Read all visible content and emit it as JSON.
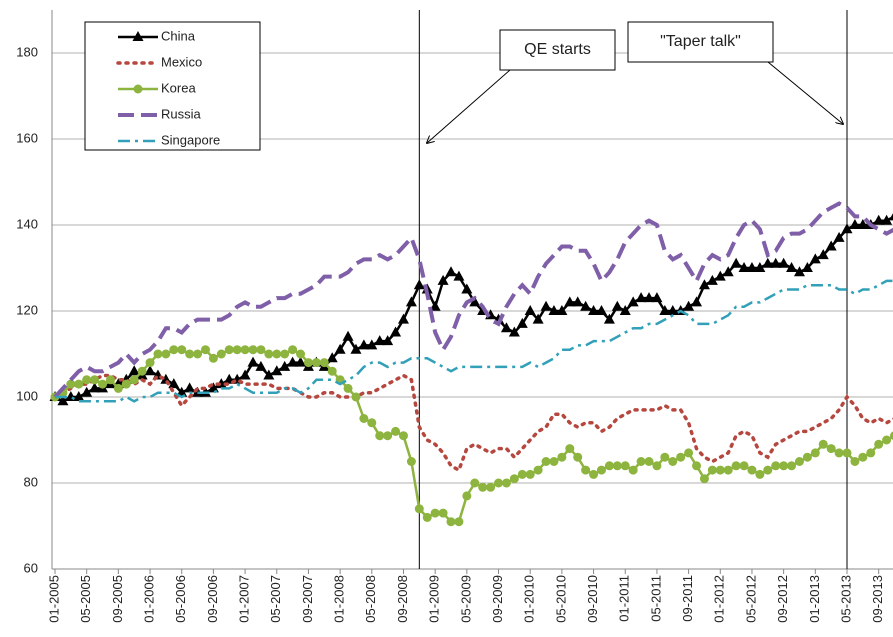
{
  "chart_data": {
    "type": "line",
    "categories": [
      "01-2005",
      null,
      null,
      null,
      "05-2005",
      null,
      null,
      null,
      "09-2005",
      null,
      null,
      null,
      "01-2006",
      null,
      null,
      null,
      "05-2006",
      null,
      null,
      null,
      "09-2006",
      null,
      null,
      null,
      "01-2007",
      null,
      null,
      null,
      "05-2007",
      null,
      null,
      null,
      "09-2007",
      null,
      null,
      null,
      "01-2008",
      null,
      null,
      null,
      "05-2008",
      null,
      null,
      null,
      "09-2008",
      null,
      null,
      null,
      "01-2009",
      null,
      null,
      null,
      "05-2009",
      null,
      null,
      null,
      "09-2009",
      null,
      null,
      null,
      "01-2010",
      null,
      null,
      null,
      "05-2010",
      null,
      null,
      null,
      "09-2010",
      null,
      null,
      null,
      "01-2011",
      null,
      null,
      null,
      "05-2011",
      null,
      null,
      null,
      "09-2011",
      null,
      null,
      null,
      "01-2012",
      null,
      null,
      null,
      "05-2012",
      null,
      null,
      null,
      "09-2012",
      null,
      null,
      null,
      "01-2013",
      null,
      null,
      null,
      "05-2013",
      null,
      null,
      null,
      "09-2013",
      null,
      null
    ],
    "series": [
      {
        "name": "China",
        "color": "#000000",
        "dash": "solid",
        "marker": "triangle",
        "values": [
          100,
          99,
          100,
          100,
          101,
          102,
          102,
          103,
          103,
          104,
          106,
          105,
          106,
          105,
          104,
          103,
          101,
          102,
          101,
          101,
          102,
          103,
          104,
          104,
          105,
          108,
          107,
          105,
          106,
          107,
          108,
          108,
          107,
          108,
          107,
          109,
          111,
          114,
          111,
          112,
          112,
          113,
          113,
          115,
          118,
          122,
          126,
          125,
          121,
          127,
          129,
          128,
          125,
          122,
          120,
          119,
          118,
          116,
          115,
          117,
          120,
          118,
          121,
          120,
          120,
          122,
          122,
          121,
          120,
          120,
          118,
          121,
          120,
          122,
          123,
          123,
          123,
          120,
          120,
          120,
          121,
          122,
          126,
          127,
          128,
          129,
          131,
          130,
          130,
          130,
          131,
          131,
          131,
          130,
          129,
          130,
          132,
          133,
          135,
          137,
          139,
          140,
          140,
          140,
          141,
          141,
          142
        ]
      },
      {
        "name": "Mexico",
        "color": "#b5473f",
        "dash": "dotted",
        "marker": "none",
        "values": [
          100,
          101,
          102,
          103,
          103,
          104,
          105,
          105,
          104,
          104,
          103,
          104,
          103,
          105,
          104,
          101,
          98,
          100,
          102,
          102,
          103,
          103,
          103,
          104,
          103,
          103,
          103,
          103,
          102,
          102,
          102,
          101,
          100,
          100,
          101,
          101,
          100,
          100,
          100,
          101,
          101,
          102,
          103,
          104,
          105,
          104,
          93,
          90,
          89,
          87,
          84,
          83,
          88,
          89,
          88,
          87,
          88,
          88,
          86,
          88,
          90,
          92,
          93,
          96,
          96,
          94,
          93,
          94,
          94,
          92,
          93,
          95,
          96,
          97,
          97,
          97,
          97,
          98,
          97,
          97,
          94,
          88,
          86,
          85,
          86,
          87,
          91,
          92,
          91,
          87,
          86,
          89,
          90,
          91,
          92,
          92,
          93,
          94,
          95,
          97,
          100,
          98,
          95,
          94,
          95,
          94,
          95
        ]
      },
      {
        "name": "Korea",
        "color": "#8db43e",
        "dash": "solid",
        "marker": "circle",
        "values": [
          100,
          101,
          103,
          103,
          104,
          104,
          103,
          104,
          102,
          103,
          104,
          106,
          108,
          110,
          110,
          111,
          111,
          110,
          110,
          111,
          109,
          110,
          111,
          111,
          111,
          111,
          111,
          110,
          110,
          110,
          111,
          110,
          108,
          108,
          108,
          106,
          104,
          102,
          100,
          95,
          94,
          91,
          91,
          92,
          91,
          85,
          74,
          72,
          73,
          73,
          71,
          71,
          77,
          80,
          79,
          79,
          80,
          80,
          81,
          82,
          82,
          83,
          85,
          85,
          86,
          88,
          86,
          83,
          82,
          83,
          84,
          84,
          84,
          83,
          85,
          85,
          84,
          86,
          85,
          86,
          87,
          84,
          81,
          83,
          83,
          83,
          84,
          84,
          83,
          82,
          83,
          84,
          84,
          84,
          85,
          86,
          87,
          89,
          88,
          87,
          87,
          85,
          86,
          87,
          89,
          90,
          91
        ]
      },
      {
        "name": "Russia",
        "color": "#7f5fa8",
        "dash": "dashed",
        "marker": "none",
        "values": [
          100,
          102,
          104,
          106,
          107,
          106,
          106,
          107,
          108,
          110,
          108,
          110,
          111,
          113,
          116,
          116,
          115,
          117,
          118,
          118,
          118,
          118,
          119,
          121,
          122,
          121,
          121,
          122,
          123,
          123,
          124,
          124,
          125,
          126,
          128,
          128,
          128,
          129,
          131,
          132,
          132,
          133,
          132,
          133,
          135,
          137,
          132,
          124,
          115,
          111,
          114,
          119,
          122,
          123,
          121,
          118,
          117,
          121,
          124,
          126,
          124,
          128,
          131,
          133,
          135,
          135,
          134,
          134,
          131,
          127,
          129,
          132,
          136,
          138,
          140,
          141,
          140,
          134,
          132,
          133,
          130,
          127,
          131,
          133,
          132,
          133,
          137,
          140,
          141,
          139,
          133,
          134,
          137,
          138,
          138,
          139,
          141,
          143,
          144,
          145,
          144,
          142,
          142,
          140,
          139,
          138,
          139
        ]
      },
      {
        "name": "Singapore",
        "color": "#31a0b8",
        "dash": "dashdot",
        "marker": "none",
        "values": [
          100,
          100,
          100,
          99,
          99,
          99,
          99,
          99,
          99,
          100,
          99,
          100,
          100,
          101,
          101,
          101,
          100,
          101,
          101,
          101,
          101,
          102,
          102,
          103,
          102,
          101,
          101,
          101,
          101,
          102,
          102,
          101,
          102,
          104,
          104,
          104,
          103,
          104,
          105,
          107,
          108,
          108,
          107,
          108,
          108,
          109,
          109,
          109,
          108,
          107,
          106,
          107,
          107,
          107,
          107,
          107,
          107,
          107,
          107,
          107,
          108,
          107,
          108,
          109,
          111,
          111,
          112,
          112,
          113,
          113,
          113,
          114,
          115,
          116,
          116,
          117,
          117,
          118,
          119,
          120,
          119,
          117,
          117,
          117,
          118,
          119,
          121,
          121,
          122,
          122,
          123,
          124,
          125,
          125,
          125,
          126,
          126,
          126,
          126,
          125,
          125,
          124,
          125,
          125,
          126,
          127,
          127
        ]
      }
    ],
    "ylim": [
      60,
      190
    ],
    "yticks": [
      60,
      80,
      100,
      120,
      140,
      160,
      180
    ],
    "grid": true,
    "annotations": [
      "QE starts",
      "\"Taper talk\""
    ],
    "legend": "top-left"
  }
}
